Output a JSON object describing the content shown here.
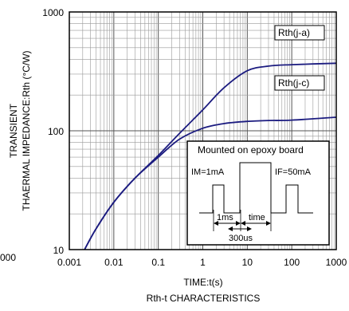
{
  "chart_data": {
    "type": "line",
    "title": "Rth-t CHARACTERISTICS",
    "xlabel": "TIME:t(s)",
    "ylabel": [
      "TRANSIENT",
      "THAERMAL IMPEDANCE:Rth (°C/W)"
    ],
    "x_scale": "log",
    "y_scale": "log",
    "xlim": [
      0.001,
      1000
    ],
    "ylim": [
      10,
      1000
    ],
    "x_ticks": [
      "0.001",
      "0.01",
      "0.1",
      "1",
      "10",
      "100",
      "1000"
    ],
    "y_ticks": [
      "10",
      "100",
      "1000"
    ],
    "left_cut_label": "000",
    "grid": true,
    "series": [
      {
        "name": "Rth(j-a)",
        "color": "#1c1c80",
        "points": [
          [
            0.0022,
            10
          ],
          [
            0.004,
            15
          ],
          [
            0.01,
            25
          ],
          [
            0.03,
            40
          ],
          [
            0.1,
            62
          ],
          [
            0.3,
            95
          ],
          [
            1,
            150
          ],
          [
            3,
            230
          ],
          [
            10,
            320
          ],
          [
            30,
            350
          ],
          [
            100,
            360
          ],
          [
            1000,
            370
          ]
        ]
      },
      {
        "name": "Rth(j-c)",
        "color": "#1c1c80",
        "points": [
          [
            0.0022,
            10
          ],
          [
            0.004,
            15
          ],
          [
            0.01,
            25
          ],
          [
            0.03,
            40
          ],
          [
            0.1,
            60
          ],
          [
            0.3,
            85
          ],
          [
            1,
            105
          ],
          [
            3,
            115
          ],
          [
            10,
            120
          ],
          [
            30,
            122
          ],
          [
            100,
            123
          ],
          [
            1000,
            130
          ]
        ]
      }
    ],
    "inset": {
      "title": "Mounted on epoxy board",
      "im_label": "IM=1mA",
      "if_label": "IF=50mA",
      "t1_label": "1ms",
      "time_label": "time",
      "t2_label": "300us"
    }
  }
}
